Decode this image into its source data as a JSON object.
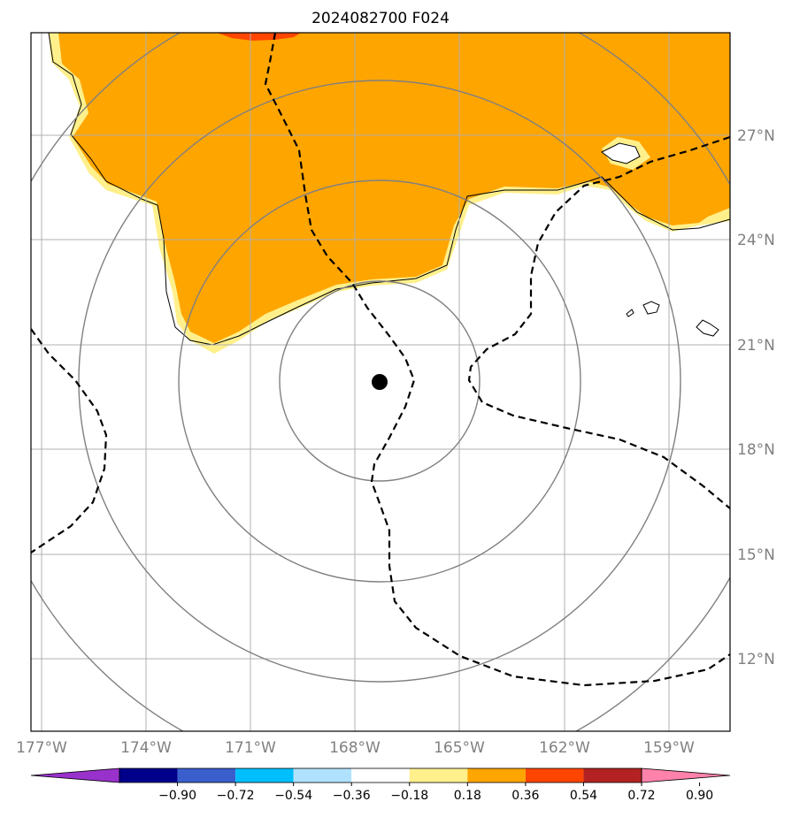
{
  "title": "2024082700 F024",
  "map": {
    "lon_labels": [
      "177°W",
      "174°W",
      "171°W",
      "168°W",
      "165°W",
      "162°W",
      "159°W"
    ],
    "lat_labels": [
      "27°N",
      "24°N",
      "21°N",
      "18°N",
      "15°N",
      "12°N"
    ],
    "center_marker": "storm-center"
  },
  "colorbar": {
    "ticks": [
      "−0.90",
      "−0.72",
      "−0.54",
      "−0.36",
      "−0.18",
      "0.18",
      "0.36",
      "0.54",
      "0.72",
      "0.90"
    ],
    "colors": [
      "#9932cc",
      "#00008b",
      "#3a5fcd",
      "#00bfff",
      "#b0e2ff",
      "#ffffff",
      "#fff08c",
      "#ffa500",
      "#ff4500",
      "#b22222",
      "#ff82ab"
    ]
  }
}
